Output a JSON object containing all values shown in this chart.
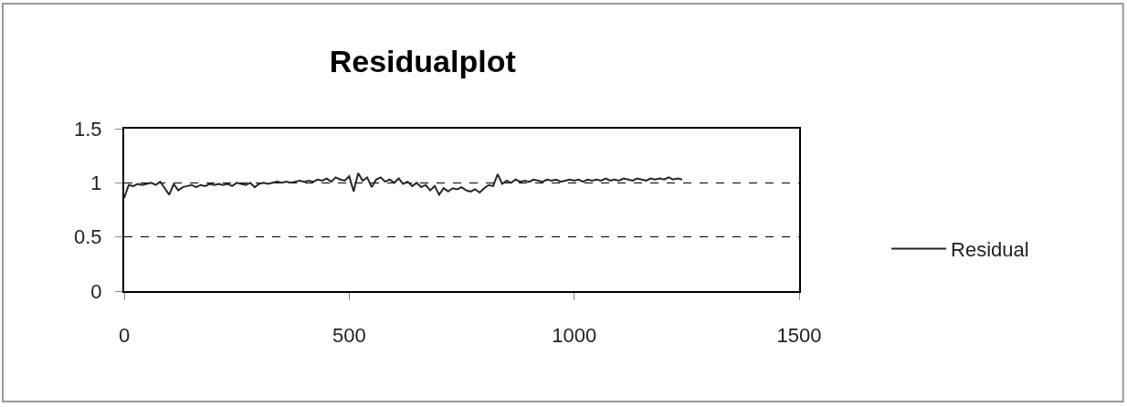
{
  "chart_data": {
    "type": "line",
    "title": "Residualplot",
    "x": [
      0,
      10,
      20,
      30,
      40,
      50,
      60,
      70,
      80,
      90,
      100,
      110,
      120,
      130,
      140,
      150,
      160,
      170,
      180,
      190,
      200,
      210,
      220,
      230,
      240,
      250,
      260,
      270,
      280,
      290,
      300,
      310,
      320,
      330,
      340,
      350,
      360,
      370,
      380,
      390,
      400,
      410,
      420,
      430,
      440,
      450,
      460,
      470,
      480,
      490,
      500,
      510,
      520,
      530,
      540,
      550,
      560,
      570,
      580,
      590,
      600,
      610,
      620,
      630,
      640,
      650,
      660,
      670,
      680,
      690,
      700,
      710,
      720,
      730,
      740,
      750,
      760,
      770,
      780,
      790,
      800,
      810,
      820,
      830,
      840,
      850,
      860,
      870,
      880,
      890,
      900,
      910,
      920,
      930,
      940,
      950,
      960,
      970,
      980,
      990,
      1000,
      1010,
      1020,
      1030,
      1040,
      1050,
      1060,
      1070,
      1080,
      1090,
      1100,
      1110,
      1120,
      1130,
      1140,
      1150,
      1160,
      1170,
      1180,
      1190,
      1200,
      1210,
      1220,
      1230,
      1240
    ],
    "series": [
      {
        "name": "Residual",
        "color": "#262626",
        "values": [
          0.86,
          0.98,
          0.97,
          0.99,
          0.98,
          0.99,
          1.0,
          0.98,
          1.01,
          0.95,
          0.89,
          0.99,
          0.93,
          0.96,
          0.97,
          0.98,
          0.96,
          0.98,
          0.97,
          0.99,
          0.98,
          0.99,
          0.98,
          0.99,
          0.97,
          1.0,
          0.99,
          0.98,
          1.0,
          0.96,
          0.99,
          1.0,
          0.99,
          1.0,
          1.01,
          1.0,
          1.01,
          1.0,
          1.01,
          1.02,
          1.01,
          1.02,
          1.01,
          1.03,
          1.02,
          1.04,
          1.01,
          1.05,
          1.03,
          1.02,
          1.06,
          0.92,
          1.09,
          1.02,
          1.05,
          0.96,
          1.03,
          1.05,
          1.01,
          1.03,
          1.0,
          1.04,
          0.99,
          1.01,
          0.97,
          1.0,
          0.96,
          0.98,
          0.93,
          0.97,
          0.89,
          0.95,
          0.92,
          0.95,
          0.94,
          0.96,
          0.93,
          0.92,
          0.94,
          0.91,
          0.95,
          0.98,
          0.97,
          1.08,
          0.99,
          1.02,
          1.0,
          1.03,
          1.01,
          1.02,
          1.01,
          1.03,
          1.02,
          1.01,
          1.03,
          1.02,
          1.03,
          1.01,
          1.02,
          1.03,
          1.02,
          1.03,
          1.01,
          1.03,
          1.02,
          1.03,
          1.02,
          1.04,
          1.02,
          1.03,
          1.02,
          1.04,
          1.03,
          1.02,
          1.04,
          1.03,
          1.02,
          1.04,
          1.03,
          1.04,
          1.03,
          1.05,
          1.03,
          1.04,
          1.03
        ]
      }
    ],
    "xlim": [
      0,
      1500
    ],
    "xticks": [
      0,
      500,
      1000,
      1500
    ],
    "ylim": [
      0,
      1.5
    ],
    "yticks": [
      0,
      0.5,
      1,
      1.5
    ],
    "grid": "y",
    "legend": "right",
    "marker": "none",
    "line_style": "solid"
  }
}
